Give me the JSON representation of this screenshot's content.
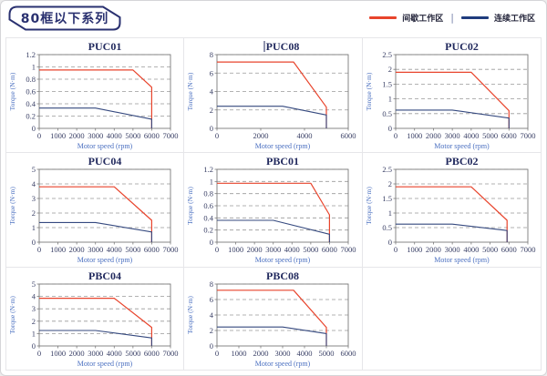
{
  "page": {
    "title_badge": "80框以下系列"
  },
  "legend": {
    "position": "top-right",
    "separator": "|",
    "items": [
      {
        "name": "intermittent-zone",
        "label": "间歇工作区",
        "color": "#e8442c"
      },
      {
        "name": "continuous-zone",
        "label": "连续工作区",
        "color": "#1f3c7d"
      }
    ]
  },
  "colors": {
    "badge_navy": "#2a3170",
    "title_text": "#222a5e",
    "tick_text": "#3a4066",
    "axis_label_blue": "#4a6fc0",
    "red_curve": "#e8442c",
    "blue_curve": "#35497f",
    "gridline": "#999999",
    "frame": "#7a7a7a"
  },
  "chart_data": [
    {
      "type": "line",
      "title": "PUC01",
      "caret": false,
      "xlabel": "Motor speed (rpm)",
      "ylabel": "Torque (N·m)",
      "xlim": [
        0,
        7000
      ],
      "xticks": [
        0,
        1000,
        2000,
        3000,
        4000,
        5000,
        6000,
        7000
      ],
      "ylim": [
        0,
        1.2
      ],
      "yticks": [
        0,
        0.2,
        0.4,
        0.6,
        0.8,
        1,
        1.2
      ],
      "grid": "dashed-horizontal",
      "series": [
        {
          "name": "间歇工作区",
          "color": "#e8442c",
          "points": [
            [
              0,
              0.95
            ],
            [
              5000,
              0.95
            ],
            [
              6000,
              0.67
            ],
            [
              6000,
              0
            ]
          ]
        },
        {
          "name": "连续工作区",
          "color": "#35497f",
          "points": [
            [
              0,
              0.33
            ],
            [
              3000,
              0.33
            ],
            [
              6000,
              0.15
            ],
            [
              6000,
              0
            ]
          ]
        }
      ]
    },
    {
      "type": "line",
      "title": "PUC08",
      "caret": true,
      "xlabel": "Motor speed (rpm)",
      "ylabel": "Torque (N·m)",
      "xlim": [
        0,
        6000
      ],
      "xticks": [
        0,
        2000,
        4000,
        6000
      ],
      "ylim": [
        0,
        8
      ],
      "yticks": [
        0,
        2,
        4,
        6,
        8
      ],
      "grid": "dashed-horizontal",
      "series": [
        {
          "name": "间歇工作区",
          "color": "#e8442c",
          "points": [
            [
              0,
              7.2
            ],
            [
              3500,
              7.2
            ],
            [
              5000,
              2.3
            ],
            [
              5000,
              0
            ]
          ]
        },
        {
          "name": "连续工作区",
          "color": "#35497f",
          "points": [
            [
              0,
              2.4
            ],
            [
              3000,
              2.4
            ],
            [
              5000,
              1.45
            ],
            [
              5000,
              0
            ]
          ]
        }
      ]
    },
    {
      "type": "line",
      "title": "PUC02",
      "caret": false,
      "xlabel": "Motor speed (rpm)",
      "ylabel": "Torque (N·m)",
      "xlim": [
        0,
        7000
      ],
      "xticks": [
        0,
        1000,
        2000,
        3000,
        4000,
        5000,
        6000,
        7000
      ],
      "ylim": [
        0,
        2.5
      ],
      "yticks": [
        0,
        0.5,
        1,
        1.5,
        2,
        2.5
      ],
      "grid": "dashed-horizontal",
      "series": [
        {
          "name": "间歇工作区",
          "color": "#e8442c",
          "points": [
            [
              0,
              1.9
            ],
            [
              4000,
              1.9
            ],
            [
              6000,
              0.6
            ],
            [
              6000,
              0
            ]
          ]
        },
        {
          "name": "连续工作区",
          "color": "#35497f",
          "points": [
            [
              0,
              0.62
            ],
            [
              3000,
              0.62
            ],
            [
              6000,
              0.35
            ],
            [
              6000,
              0
            ]
          ]
        }
      ]
    },
    {
      "type": "line",
      "title": "PUC04",
      "caret": false,
      "xlabel": "Motor speed (rpm)",
      "ylabel": "Torque (N·m)",
      "xlim": [
        0,
        7000
      ],
      "xticks": [
        0,
        1000,
        2000,
        3000,
        4000,
        5000,
        6000,
        7000
      ],
      "ylim": [
        0,
        5
      ],
      "yticks": [
        0,
        1,
        2,
        3,
        4,
        5
      ],
      "grid": "dashed-horizontal",
      "series": [
        {
          "name": "间歇工作区",
          "color": "#e8442c",
          "points": [
            [
              0,
              3.8
            ],
            [
              4000,
              3.8
            ],
            [
              6000,
              1.5
            ],
            [
              6000,
              0
            ]
          ]
        },
        {
          "name": "连续工作区",
          "color": "#35497f",
          "points": [
            [
              0,
              1.35
            ],
            [
              3000,
              1.35
            ],
            [
              6000,
              0.7
            ],
            [
              6000,
              0
            ]
          ]
        }
      ]
    },
    {
      "type": "line",
      "title": "PBC01",
      "caret": false,
      "xlabel": "Motor speed (rpm)",
      "ylabel": "Torque (N·m)",
      "xlim": [
        0,
        7000
      ],
      "xticks": [
        0,
        1000,
        2000,
        3000,
        4000,
        5000,
        6000,
        7000
      ],
      "ylim": [
        0,
        1.2
      ],
      "yticks": [
        0,
        0.2,
        0.4,
        0.6,
        0.8,
        1,
        1.2
      ],
      "grid": "dashed-horizontal",
      "series": [
        {
          "name": "间歇工作区",
          "color": "#e8442c",
          "points": [
            [
              0,
              0.97
            ],
            [
              5000,
              0.97
            ],
            [
              6000,
              0.45
            ],
            [
              6000,
              0
            ]
          ]
        },
        {
          "name": "连续工作区",
          "color": "#35497f",
          "points": [
            [
              0,
              0.36
            ],
            [
              3000,
              0.36
            ],
            [
              6000,
              0.13
            ],
            [
              6000,
              0
            ]
          ]
        }
      ]
    },
    {
      "type": "line",
      "title": "PBC02",
      "caret": false,
      "xlabel": "Motor speed (rpm)",
      "ylabel": "Torque (N·m)",
      "xlim": [
        0,
        7000
      ],
      "xticks": [
        0,
        1000,
        2000,
        3000,
        4000,
        5000,
        6000,
        7000
      ],
      "ylim": [
        0,
        2.5
      ],
      "yticks": [
        0,
        0.5,
        1,
        1.5,
        2,
        2.5
      ],
      "grid": "dashed-horizontal",
      "series": [
        {
          "name": "间歇工作区",
          "color": "#e8442c",
          "points": [
            [
              0,
              1.9
            ],
            [
              4000,
              1.9
            ],
            [
              5900,
              0.75
            ],
            [
              5900,
              0
            ]
          ]
        },
        {
          "name": "连续工作区",
          "color": "#35497f",
          "points": [
            [
              0,
              0.62
            ],
            [
              3000,
              0.62
            ],
            [
              5900,
              0.4
            ],
            [
              5900,
              0
            ]
          ]
        }
      ]
    },
    {
      "type": "line",
      "title": "PBC04",
      "caret": false,
      "xlabel": "Motor speed (rpm)",
      "ylabel": "Torque (N·m)",
      "xlim": [
        0,
        7000
      ],
      "xticks": [
        0,
        1000,
        2000,
        3000,
        4000,
        5000,
        6000,
        7000
      ],
      "ylim": [
        0,
        5
      ],
      "yticks": [
        0,
        1,
        2,
        3,
        4,
        5
      ],
      "grid": "dashed-horizontal",
      "series": [
        {
          "name": "间歇工作区",
          "color": "#e8442c",
          "points": [
            [
              0,
              3.85
            ],
            [
              4000,
              3.85
            ],
            [
              6000,
              1.5
            ],
            [
              6000,
              0
            ]
          ]
        },
        {
          "name": "连续工作区",
          "color": "#35497f",
          "points": [
            [
              0,
              1.25
            ],
            [
              3000,
              1.25
            ],
            [
              6000,
              0.65
            ],
            [
              6000,
              0
            ]
          ]
        }
      ]
    },
    {
      "type": "line",
      "title": "PBC08",
      "caret": false,
      "xlabel": "Motor speed (rpm)",
      "ylabel": "Torque (N·m)",
      "xlim": [
        0,
        6000
      ],
      "xticks": [
        0,
        1000,
        2000,
        3000,
        4000,
        5000,
        6000
      ],
      "ylim": [
        0,
        8
      ],
      "yticks": [
        0,
        2,
        4,
        6,
        8
      ],
      "grid": "dashed-horizontal",
      "series": [
        {
          "name": "间歇工作区",
          "color": "#e8442c",
          "points": [
            [
              0,
              7.2
            ],
            [
              3500,
              7.2
            ],
            [
              5000,
              2.4
            ],
            [
              5000,
              0
            ]
          ]
        },
        {
          "name": "连续工作区",
          "color": "#35497f",
          "points": [
            [
              0,
              2.45
            ],
            [
              3000,
              2.45
            ],
            [
              5000,
              1.6
            ],
            [
              5000,
              0
            ]
          ]
        }
      ]
    }
  ]
}
